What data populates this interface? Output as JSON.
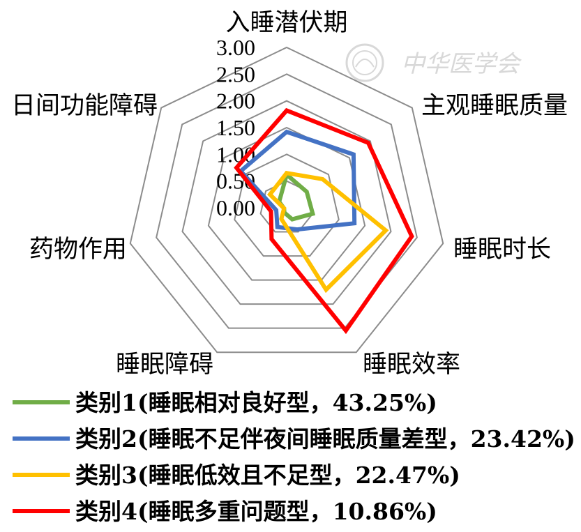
{
  "chart_data": {
    "type": "radar",
    "axes": [
      "入睡潜伏期",
      "主观睡眠质量",
      "睡眠时长",
      "睡眠效率",
      "睡眠障碍",
      "药物作用",
      "日间功能障碍"
    ],
    "ticks": [
      "3.00",
      "2.50",
      "2.00",
      "1.50",
      "1.00",
      "0.50",
      "0.00"
    ],
    "rlim": [
      0,
      3
    ],
    "grid": true,
    "legend_position": "bottom",
    "series": [
      {
        "name": "类别1(睡眠相对良好型，43.25%)",
        "color": "#70ad47",
        "values": [
          0.62,
          0.48,
          0.5,
          0.24,
          0.1,
          0.05,
          0.18
        ]
      },
      {
        "name": "类别2(睡眠不足伴夜间睡眠质量差型，23.42%)",
        "color": "#4472c4",
        "values": [
          1.42,
          1.6,
          1.3,
          0.45,
          0.4,
          0.2,
          1.1
        ]
      },
      {
        "name": "类别3(睡眠低效且不足型，22.47%)",
        "color": "#ffc000",
        "values": [
          0.65,
          0.86,
          1.9,
          1.7,
          0.23,
          0.05,
          0.4
        ]
      },
      {
        "name": "类别4(睡眠多重问题型，10.86%)",
        "color": "#ff0000",
        "values": [
          1.82,
          1.95,
          2.4,
          2.55,
          0.65,
          0.3,
          1.2
        ]
      }
    ]
  },
  "watermark": {
    "text": "中华医学会",
    "icon": "society-seal-icon"
  }
}
